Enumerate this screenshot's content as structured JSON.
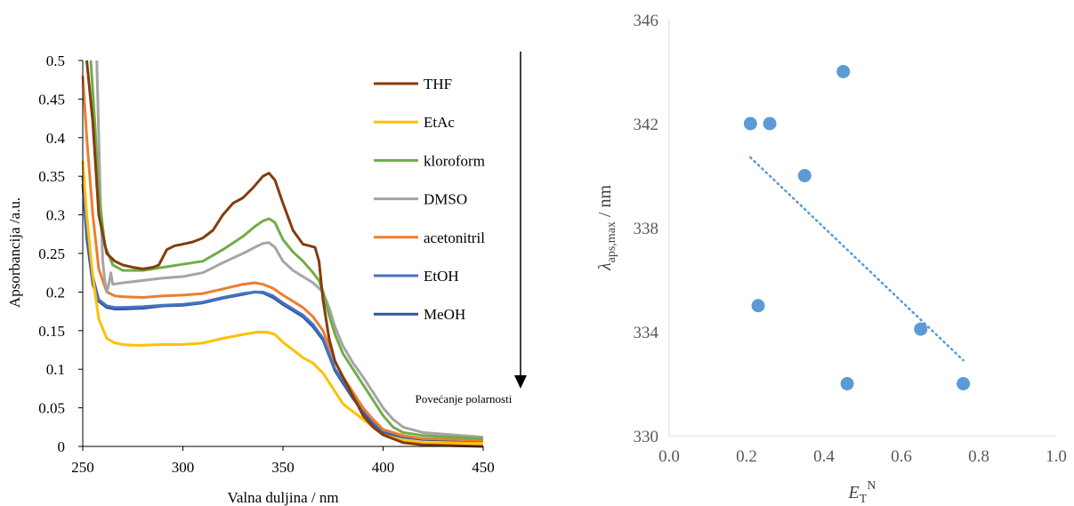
{
  "chart_data": [
    {
      "type": "line",
      "title": "",
      "xlabel": "Valna duljina / nm",
      "ylabel": "Apsorbancija  /a.u.",
      "xlim": [
        250,
        450
      ],
      "ylim": [
        0,
        0.5
      ],
      "x_ticks": [
        "250",
        "300",
        "350",
        "400",
        "450"
      ],
      "y_ticks": [
        "0",
        "0.05",
        "0.1",
        "0.15",
        "0.2",
        "0.25",
        "0.3",
        "0.35",
        "0.4",
        "0.45",
        "0.5"
      ],
      "grid": false,
      "legend_position": "right",
      "annotation": "Povećanje polarnosti",
      "series": [
        {
          "name": "THF",
          "color": "#843c0c",
          "points": [
            [
              252,
              0.5
            ],
            [
              255,
              0.42
            ],
            [
              258,
              0.3
            ],
            [
              262,
              0.25
            ],
            [
              266,
              0.24
            ],
            [
              270,
              0.235
            ],
            [
              275,
              0.232
            ],
            [
              280,
              0.23
            ],
            [
              285,
              0.232
            ],
            [
              288,
              0.235
            ],
            [
              292,
              0.255
            ],
            [
              296,
              0.26
            ],
            [
              300,
              0.262
            ],
            [
              305,
              0.265
            ],
            [
              310,
              0.27
            ],
            [
              315,
              0.28
            ],
            [
              320,
              0.3
            ],
            [
              325,
              0.315
            ],
            [
              330,
              0.322
            ],
            [
              335,
              0.335
            ],
            [
              340,
              0.35
            ],
            [
              343,
              0.354
            ],
            [
              346,
              0.345
            ],
            [
              350,
              0.315
            ],
            [
              355,
              0.28
            ],
            [
              360,
              0.262
            ],
            [
              363,
              0.26
            ],
            [
              366,
              0.258
            ],
            [
              368,
              0.24
            ],
            [
              370,
              0.19
            ],
            [
              373,
              0.14
            ],
            [
              376,
              0.11
            ],
            [
              380,
              0.09
            ],
            [
              385,
              0.065
            ],
            [
              390,
              0.04
            ],
            [
              395,
              0.025
            ],
            [
              400,
              0.015
            ],
            [
              410,
              0.005
            ],
            [
              420,
              0.002
            ],
            [
              450,
              0.0
            ]
          ]
        },
        {
          "name": "EtAc",
          "color": "#ffc000",
          "points": [
            [
              250,
              0.37
            ],
            [
              252,
              0.3
            ],
            [
              255,
              0.22
            ],
            [
              258,
              0.165
            ],
            [
              262,
              0.14
            ],
            [
              266,
              0.134
            ],
            [
              270,
              0.132
            ],
            [
              275,
              0.131
            ],
            [
              280,
              0.131
            ],
            [
              290,
              0.132
            ],
            [
              300,
              0.132
            ],
            [
              310,
              0.134
            ],
            [
              320,
              0.14
            ],
            [
              330,
              0.145
            ],
            [
              337,
              0.148
            ],
            [
              342,
              0.148
            ],
            [
              346,
              0.145
            ],
            [
              350,
              0.135
            ],
            [
              355,
              0.125
            ],
            [
              360,
              0.115
            ],
            [
              365,
              0.108
            ],
            [
              370,
              0.095
            ],
            [
              375,
              0.075
            ],
            [
              380,
              0.055
            ],
            [
              385,
              0.045
            ],
            [
              390,
              0.035
            ],
            [
              395,
              0.025
            ],
            [
              400,
              0.015
            ],
            [
              410,
              0.008
            ],
            [
              420,
              0.005
            ],
            [
              450,
              0.004
            ]
          ]
        },
        {
          "name": "kloroform",
          "color": "#70ad47",
          "points": [
            [
              254,
              0.5
            ],
            [
              256,
              0.42
            ],
            [
              258,
              0.33
            ],
            [
              261,
              0.26
            ],
            [
              265,
              0.235
            ],
            [
              270,
              0.228
            ],
            [
              280,
              0.228
            ],
            [
              290,
              0.232
            ],
            [
              300,
              0.236
            ],
            [
              310,
              0.24
            ],
            [
              320,
              0.255
            ],
            [
              330,
              0.272
            ],
            [
              336,
              0.285
            ],
            [
              340,
              0.292
            ],
            [
              343,
              0.295
            ],
            [
              346,
              0.29
            ],
            [
              350,
              0.268
            ],
            [
              355,
              0.252
            ],
            [
              360,
              0.24
            ],
            [
              365,
              0.225
            ],
            [
              368,
              0.215
            ],
            [
              370,
              0.2
            ],
            [
              373,
              0.17
            ],
            [
              376,
              0.145
            ],
            [
              380,
              0.12
            ],
            [
              385,
              0.1
            ],
            [
              390,
              0.08
            ],
            [
              395,
              0.06
            ],
            [
              400,
              0.04
            ],
            [
              405,
              0.025
            ],
            [
              410,
              0.018
            ],
            [
              420,
              0.014
            ],
            [
              450,
              0.01
            ]
          ]
        },
        {
          "name": "DMSO",
          "color": "#a5a5a5",
          "points": [
            [
              257,
              0.5
            ],
            [
              258,
              0.4
            ],
            [
              259,
              0.3
            ],
            [
              260,
              0.24
            ],
            [
              261,
              0.215
            ],
            [
              262,
              0.2
            ],
            [
              263,
              0.21
            ],
            [
              264,
              0.225
            ],
            [
              265,
              0.21
            ],
            [
              270,
              0.212
            ],
            [
              280,
              0.215
            ],
            [
              290,
              0.218
            ],
            [
              300,
              0.22
            ],
            [
              310,
              0.225
            ],
            [
              320,
              0.238
            ],
            [
              330,
              0.25
            ],
            [
              336,
              0.258
            ],
            [
              340,
              0.263
            ],
            [
              343,
              0.264
            ],
            [
              346,
              0.258
            ],
            [
              350,
              0.24
            ],
            [
              355,
              0.228
            ],
            [
              360,
              0.22
            ],
            [
              365,
              0.212
            ],
            [
              370,
              0.2
            ],
            [
              373,
              0.18
            ],
            [
              376,
              0.155
            ],
            [
              380,
              0.13
            ],
            [
              385,
              0.108
            ],
            [
              390,
              0.09
            ],
            [
              395,
              0.07
            ],
            [
              400,
              0.05
            ],
            [
              405,
              0.035
            ],
            [
              410,
              0.025
            ],
            [
              420,
              0.018
            ],
            [
              450,
              0.012
            ]
          ]
        },
        {
          "name": "acetonitril",
          "color": "#ed7d31",
          "points": [
            [
              250,
              0.48
            ],
            [
              252,
              0.4
            ],
            [
              255,
              0.3
            ],
            [
              258,
              0.23
            ],
            [
              262,
              0.2
            ],
            [
              266,
              0.195
            ],
            [
              270,
              0.194
            ],
            [
              280,
              0.193
            ],
            [
              290,
              0.195
            ],
            [
              300,
              0.196
            ],
            [
              310,
              0.198
            ],
            [
              320,
              0.204
            ],
            [
              330,
              0.21
            ],
            [
              336,
              0.212
            ],
            [
              340,
              0.21
            ],
            [
              345,
              0.205
            ],
            [
              350,
              0.196
            ],
            [
              355,
              0.188
            ],
            [
              360,
              0.18
            ],
            [
              365,
              0.168
            ],
            [
              370,
              0.15
            ],
            [
              373,
              0.13
            ],
            [
              376,
              0.11
            ],
            [
              380,
              0.09
            ],
            [
              385,
              0.07
            ],
            [
              390,
              0.05
            ],
            [
              395,
              0.035
            ],
            [
              400,
              0.022
            ],
            [
              410,
              0.014
            ],
            [
              420,
              0.01
            ],
            [
              450,
              0.008
            ]
          ]
        },
        {
          "name": "EtOH",
          "color": "#4472c4",
          "points": [
            [
              250,
              0.35
            ],
            [
              252,
              0.28
            ],
            [
              255,
              0.22
            ],
            [
              258,
              0.19
            ],
            [
              262,
              0.182
            ],
            [
              266,
              0.18
            ],
            [
              270,
              0.18
            ],
            [
              280,
              0.181
            ],
            [
              290,
              0.183
            ],
            [
              300,
              0.184
            ],
            [
              310,
              0.187
            ],
            [
              320,
              0.193
            ],
            [
              330,
              0.198
            ],
            [
              336,
              0.2
            ],
            [
              340,
              0.2
            ],
            [
              345,
              0.195
            ],
            [
              350,
              0.186
            ],
            [
              355,
              0.178
            ],
            [
              360,
              0.17
            ],
            [
              365,
              0.158
            ],
            [
              370,
              0.14
            ],
            [
              373,
              0.12
            ],
            [
              376,
              0.1
            ],
            [
              380,
              0.085
            ],
            [
              385,
              0.065
            ],
            [
              390,
              0.048
            ],
            [
              395,
              0.032
            ],
            [
              400,
              0.02
            ],
            [
              410,
              0.013
            ],
            [
              420,
              0.01
            ],
            [
              450,
              0.008
            ]
          ]
        },
        {
          "name": "MeOH",
          "color": "#2f5597",
          "points": [
            [
              250,
              0.34
            ],
            [
              252,
              0.27
            ],
            [
              255,
              0.21
            ],
            [
              258,
              0.188
            ],
            [
              262,
              0.18
            ],
            [
              266,
              0.178
            ],
            [
              270,
              0.178
            ],
            [
              280,
              0.179
            ],
            [
              290,
              0.182
            ],
            [
              300,
              0.183
            ],
            [
              310,
              0.186
            ],
            [
              320,
              0.192
            ],
            [
              330,
              0.197
            ],
            [
              336,
              0.2
            ],
            [
              340,
              0.199
            ],
            [
              345,
              0.193
            ],
            [
              350,
              0.184
            ],
            [
              355,
              0.176
            ],
            [
              360,
              0.168
            ],
            [
              365,
              0.155
            ],
            [
              370,
              0.138
            ],
            [
              373,
              0.118
            ],
            [
              376,
              0.098
            ],
            [
              380,
              0.082
            ],
            [
              385,
              0.062
            ],
            [
              390,
              0.045
            ],
            [
              395,
              0.03
            ],
            [
              400,
              0.018
            ],
            [
              410,
              0.012
            ],
            [
              420,
              0.009
            ],
            [
              450,
              0.007
            ]
          ]
        }
      ]
    },
    {
      "type": "scatter",
      "title": "",
      "xlabel_main": "E",
      "xlabel_sub": "T",
      "xlabel_sup": "N",
      "ylabel_main": "λ",
      "ylabel_sub": "aps,max",
      "ylabel_rest": " / nm",
      "xlim": [
        0,
        1
      ],
      "ylim": [
        330,
        346
      ],
      "x_ticks": [
        "0.0",
        "0.2",
        "0.4",
        "0.6",
        "0.8",
        "1.0"
      ],
      "y_ticks": [
        "330",
        "334",
        "338",
        "342",
        "346"
      ],
      "grid": false,
      "point_color": "#5b9bd5",
      "points": [
        [
          0.21,
          342
        ],
        [
          0.26,
          342
        ],
        [
          0.45,
          344
        ],
        [
          0.35,
          340
        ],
        [
          0.23,
          335
        ],
        [
          0.46,
          332
        ],
        [
          0.65,
          334.1
        ],
        [
          0.76,
          332
        ]
      ],
      "trendline": {
        "style": "dotted",
        "x": [
          0.21,
          0.76
        ],
        "y": [
          340.7,
          332.9
        ]
      }
    }
  ]
}
